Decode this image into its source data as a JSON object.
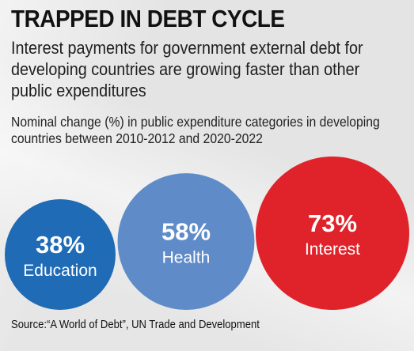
{
  "header": {
    "title": "TRAPPED IN DEBT CYCLE",
    "subtitle": "Interest payments for government external debt for developing countries are growing faster than other public expenditures",
    "note": "Nominal change (%) in public expenditure categories in developing countries between 2010-2012 and 2020-2022"
  },
  "footer": {
    "source": "Source:“A World of Debt”, UN Trade and Development"
  },
  "chart_data": {
    "type": "bubble",
    "title": "TRAPPED IN DEBT CYCLE",
    "unit": "%",
    "categories": [
      "Education",
      "Health",
      "Interest"
    ],
    "values": [
      38,
      58,
      73
    ],
    "value_labels": [
      "38%",
      "58%",
      "73%"
    ],
    "colors": [
      "#1f6bb6",
      "#5f8cc9",
      "#e0232b"
    ]
  }
}
